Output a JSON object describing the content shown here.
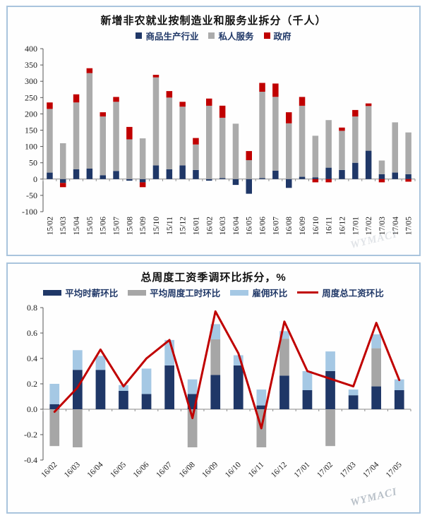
{
  "watermark": "WYMACI",
  "chart_data": [
    {
      "type": "stacked-bar",
      "title": "新增非农就业按制造业和服务业拆分（千人）",
      "xlabel": "",
      "ylabel": "",
      "ylim": [
        -100,
        400
      ],
      "ytick_values": [
        400,
        350,
        300,
        250,
        200,
        150,
        100,
        50,
        0,
        -50,
        -100
      ],
      "ytick_labels": [
        "400",
        "350",
        "300",
        "250",
        "200",
        "150",
        "100",
        "50",
        "0",
        "-50",
        "-100"
      ],
      "grid": false,
      "legend_position": "top-center",
      "categories": [
        "15/02",
        "15/03",
        "15/04",
        "15/05",
        "15/06",
        "15/07",
        "15/08",
        "15/09",
        "15/10",
        "15/11",
        "15/12",
        "16/01",
        "16/02",
        "16/03",
        "16/04",
        "16/05",
        "16/06",
        "16/07",
        "16/08",
        "16/09",
        "16/10",
        "16/11",
        "16/12",
        "17/01",
        "17/02",
        "17/03",
        "17/04",
        "17/05"
      ],
      "series": [
        {
          "name": "商品生产行业",
          "kind": "bar",
          "swatch": "square",
          "color": "#1f3767",
          "values": [
            20,
            -12,
            30,
            32,
            12,
            25,
            -5,
            -10,
            42,
            30,
            42,
            28,
            -5,
            3,
            -18,
            -45,
            3,
            26,
            -27,
            7,
            5,
            35,
            28,
            50,
            87,
            15,
            20,
            15
          ]
        },
        {
          "name": "私人服务",
          "kind": "bar",
          "swatch": "square",
          "color": "#ababab",
          "values": [
            195,
            110,
            205,
            293,
            180,
            212,
            122,
            125,
            270,
            220,
            180,
            78,
            225,
            185,
            170,
            58,
            265,
            226,
            171,
            218,
            128,
            146,
            120,
            142,
            137,
            42,
            154,
            128
          ]
        },
        {
          "name": "政府",
          "kind": "bar",
          "swatch": "square",
          "color": "#c00000",
          "values": [
            20,
            -13,
            25,
            15,
            13,
            15,
            38,
            -15,
            8,
            20,
            15,
            20,
            22,
            37,
            0,
            28,
            27,
            41,
            34,
            27,
            -10,
            -10,
            10,
            20,
            8,
            -10,
            0,
            -8
          ]
        }
      ]
    },
    {
      "type": "stacked-bar-line",
      "title": "总周度工资季调环比拆分，%",
      "xlabel": "",
      "ylabel": "",
      "ylim": [
        -0.4,
        0.8
      ],
      "ytick_values": [
        0.8,
        0.6,
        0.4,
        0.2,
        0.0,
        -0.2,
        -0.4
      ],
      "ytick_labels": [
        "0.8",
        "0.6",
        "0.4",
        "0.2",
        "0.0",
        "-0.2",
        "-0.4"
      ],
      "grid": false,
      "legend_position": "top-center",
      "categories": [
        "16/02",
        "16/03",
        "16/04",
        "16/05",
        "16/06",
        "16/07",
        "16/08",
        "16/09",
        "16/10",
        "16/11",
        "16/12",
        "17/01",
        "17/02",
        "17/03",
        "17/04",
        "17/05"
      ],
      "series": [
        {
          "name": "平均时薪环比",
          "kind": "bar",
          "swatch": "bar",
          "color": "#1f3767",
          "values": [
            0.04,
            0.31,
            0.31,
            0.145,
            0.12,
            0.345,
            0.12,
            0.27,
            0.345,
            0.03,
            0.265,
            0.15,
            0.3,
            0.11,
            0.18,
            0.15
          ]
        },
        {
          "name": "平均周度工时环比",
          "kind": "bar",
          "swatch": "bar",
          "color": "#a6a6a6",
          "values": [
            -0.29,
            -0.3,
            0,
            0,
            0,
            0,
            -0.3,
            0.28,
            0,
            -0.3,
            0.29,
            0,
            -0.29,
            0,
            0.3,
            0
          ]
        },
        {
          "name": "雇佣环比",
          "kind": "bar",
          "swatch": "bar",
          "color": "#a5c8e4",
          "values": [
            0.16,
            0.155,
            0.11,
            0.045,
            0.2,
            0.2,
            0.115,
            0.12,
            0.08,
            0.125,
            0.06,
            0.15,
            0.155,
            0.045,
            0.11,
            0.085
          ]
        },
        {
          "name": "周度总工资环比",
          "kind": "line",
          "swatch": "line",
          "color": "#c00000",
          "values": [
            -0.02,
            0.17,
            0.47,
            0.18,
            0.4,
            0.545,
            -0.07,
            0.77,
            0.44,
            -0.15,
            0.69,
            0.3,
            0.24,
            0.18,
            0.68,
            0.23
          ]
        }
      ]
    }
  ]
}
